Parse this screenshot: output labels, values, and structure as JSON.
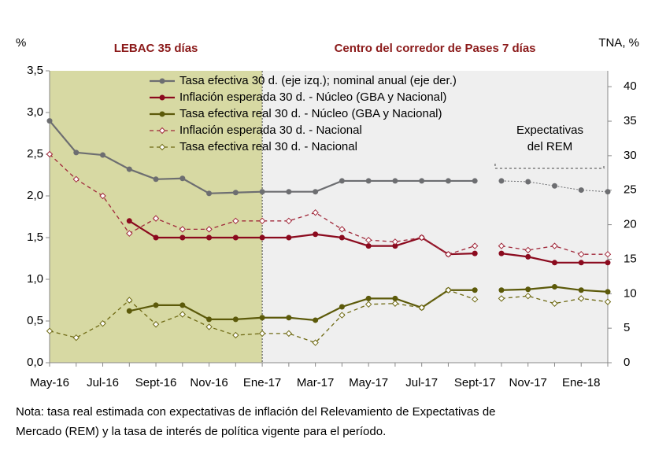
{
  "chart_data": {
    "type": "line",
    "ylabel": "%",
    "y2label": "TNA, %",
    "categories": [
      "May-16",
      null,
      "Jul-16",
      null,
      "Sept-16",
      null,
      "Nov-16",
      null,
      "Ene-17",
      null,
      "Mar-17",
      null,
      "May-17",
      null,
      "Jul-17",
      null,
      "Sept-17",
      null,
      "Nov-17",
      null,
      "Ene-18",
      null
    ],
    "ylim": [
      0,
      3.5
    ],
    "yticks": [
      {
        "value": 0,
        "label": "0,0"
      },
      {
        "value": 0.5,
        "label": "0,5"
      },
      {
        "value": 1,
        "label": "1,0"
      },
      {
        "value": 1.5,
        "label": "1,5"
      },
      {
        "value": 2,
        "label": "2,0"
      },
      {
        "value": 2.5,
        "label": "2,5"
      },
      {
        "value": 3,
        "label": "3,0"
      },
      {
        "value": 3.5,
        "label": "3,5"
      }
    ],
    "y2lim": [
      0,
      42.3
    ],
    "y2ticks": [
      0,
      5,
      10,
      15,
      20,
      25,
      30,
      35,
      40
    ],
    "regions": [
      {
        "label": "LEBAC 35 días",
        "from": 0,
        "to": 8,
        "color": "#d7d9a3"
      },
      {
        "label": "Centro del corredor de Pases 7 días",
        "from": 8,
        "to": 21,
        "color": "#efefef"
      }
    ],
    "forecast": {
      "label": "Expectativas\ndel REM",
      "from": 17
    },
    "series": [
      {
        "name": "Tasa efectiva 30 d. (eje izq.); nominal anual (eje der.)",
        "color": "#6d6e71",
        "style": "solid",
        "forecast_style": "dotted",
        "marker": "circle",
        "values": [
          2.9,
          2.52,
          2.49,
          2.32,
          2.2,
          2.21,
          2.03,
          2.04,
          2.05,
          2.05,
          2.05,
          2.18,
          2.18,
          2.18,
          2.18,
          2.18,
          2.18,
          2.18,
          2.17,
          2.12,
          2.07,
          2.05
        ]
      },
      {
        "name": "Inflación esperada 30 d. - Núcleo (GBA y Nacional)",
        "color": "#8b0a1e",
        "style": "solid",
        "marker": "circle",
        "values": [
          null,
          null,
          null,
          1.7,
          1.5,
          1.5,
          1.5,
          1.5,
          1.5,
          1.5,
          1.54,
          1.5,
          1.4,
          1.4,
          1.5,
          1.3,
          1.31,
          1.31,
          1.27,
          1.2,
          1.2,
          1.2
        ]
      },
      {
        "name": "Tasa efectiva real 30 d. - Núcleo (GBA y Nacional)",
        "color": "#5c5a0a",
        "style": "solid",
        "marker": "circle",
        "values": [
          null,
          null,
          null,
          0.62,
          0.69,
          0.69,
          0.52,
          0.52,
          0.54,
          0.54,
          0.51,
          0.67,
          0.77,
          0.77,
          0.66,
          0.87,
          0.87,
          0.87,
          0.88,
          0.91,
          0.87,
          0.85
        ]
      },
      {
        "name": "Inflación esperada 30 d. - Nacional",
        "color": "#a0283a",
        "style": "dashed",
        "marker": "diamond",
        "values": [
          2.5,
          2.2,
          2.0,
          1.55,
          1.73,
          1.6,
          1.6,
          1.7,
          1.7,
          1.7,
          1.8,
          1.6,
          1.47,
          1.45,
          1.5,
          1.3,
          1.4,
          1.4,
          1.35,
          1.4,
          1.3,
          1.3
        ]
      },
      {
        "name": "Tasa efectiva real 30 d. - Nacional",
        "color": "#6f6a14",
        "style": "dashed",
        "marker": "diamond",
        "values": [
          0.38,
          0.3,
          0.47,
          0.75,
          0.46,
          0.58,
          0.43,
          0.33,
          0.35,
          0.35,
          0.24,
          0.57,
          0.7,
          0.71,
          0.66,
          0.87,
          0.76,
          0.77,
          0.8,
          0.71,
          0.77,
          0.73
        ]
      }
    ],
    "note": [
      "Nota: tasa real estimada con expectativas de inflación del Relevamiento de Expectativas de",
      "Mercado (REM) y la tasa de interés de política vigente para el período."
    ]
  }
}
